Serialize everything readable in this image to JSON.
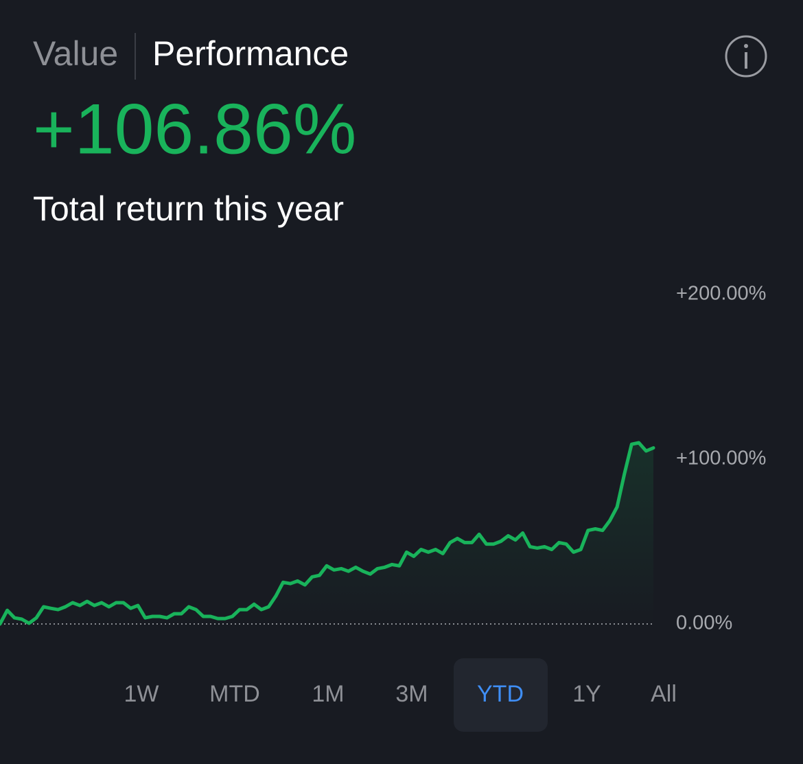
{
  "header": {
    "tabs": [
      "Value",
      "Performance"
    ],
    "active_tab": 1
  },
  "summary": {
    "return": "+106.86%",
    "caption": "Total return this year"
  },
  "chart_data": {
    "type": "line",
    "color": "#19b35b",
    "values": [
      0,
      8.3,
      3.7,
      2.9,
      0.4,
      3.7,
      10.4,
      9.5,
      8.7,
      10.4,
      12.9,
      11.2,
      13.7,
      11.2,
      12.9,
      10.4,
      12.9,
      12.9,
      9.5,
      11.2,
      3.7,
      4.6,
      4.6,
      3.7,
      6.2,
      6.2,
      10.4,
      8.7,
      4.6,
      4.6,
      3.3,
      3.3,
      4.6,
      8.7,
      8.7,
      12.0,
      8.7,
      10.4,
      17.0,
      25.3,
      24.5,
      26.1,
      23.7,
      28.6,
      29.5,
      35.3,
      32.8,
      33.6,
      32.0,
      34.4,
      32.0,
      30.3,
      33.6,
      34.4,
      36.1,
      35.3,
      43.6,
      41.1,
      45.2,
      43.6,
      45.2,
      42.7,
      49.4,
      51.9,
      49.4,
      49.4,
      54.4,
      48.5,
      48.5,
      50.2,
      53.5,
      51.0,
      55.2,
      46.9,
      46.1,
      46.9,
      45.2,
      49.4,
      48.5,
      43.6,
      45.2,
      56.8,
      57.7,
      56.8,
      62.7,
      71.0,
      90.9,
      109.1,
      110.0,
      105.0,
      106.86
    ],
    "ylim": [
      0,
      220
    ],
    "yticks": [
      {
        "value": 0,
        "label": "0.00%"
      },
      {
        "value": 100,
        "label": "+100.00%"
      },
      {
        "value": 200,
        "label": "+200.00%"
      }
    ]
  },
  "ranges": {
    "options": [
      "1W",
      "MTD",
      "1M",
      "3M",
      "YTD",
      "1Y",
      "All"
    ],
    "selected": 4
  }
}
